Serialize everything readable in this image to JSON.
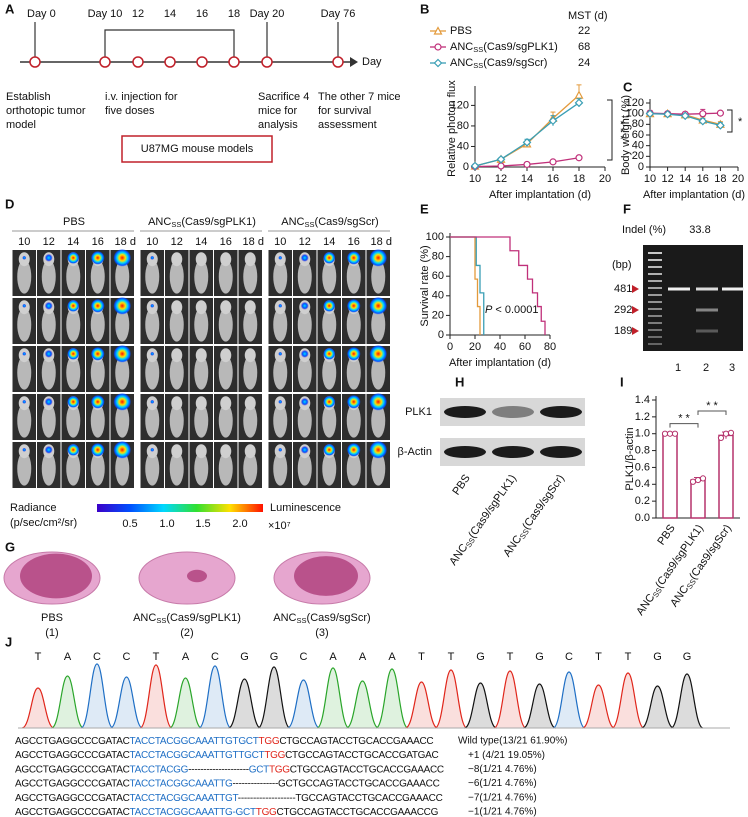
{
  "panel_labels": [
    "A",
    "B",
    "C",
    "D",
    "E",
    "F",
    "G",
    "H",
    "I",
    "J"
  ],
  "timeline": {
    "days": [
      "Day 0",
      "Day 10",
      "12",
      "14",
      "16",
      "18",
      "Day 20",
      "Day 76"
    ],
    "axis_label": "Day",
    "notes": [
      [
        "Establish",
        "orthotopic tumor",
        "model"
      ],
      [
        "i.v. injection for",
        "five doses"
      ],
      [
        "Sacrifice 4",
        "mice for",
        "analysis"
      ],
      [
        "The other 7 mice",
        "for survival",
        "assessment"
      ]
    ],
    "model_box": "U87MG mouse models"
  },
  "chart_data": [
    {
      "type": "line",
      "ylabel": "Relative photon flux",
      "xlabel": "After implantation (d)",
      "mst_label": "MST (d)",
      "significance": "* * *",
      "x": [
        10,
        12,
        14,
        16,
        18
      ],
      "series": [
        {
          "name": "PBS",
          "mst": 22,
          "color": "#e39a3b",
          "marker": "triangle",
          "values": [
            2,
            15,
            45,
            95,
            140
          ],
          "errors": [
            1,
            3,
            6,
            12,
            20
          ]
        },
        {
          "name": "ANCSS(Cas9/sgPLK1)",
          "mst": 68,
          "color": "#c0307a",
          "marker": "circle",
          "values": [
            1,
            2,
            5,
            10,
            18
          ],
          "errors": [
            0.5,
            1,
            2,
            3,
            3
          ]
        },
        {
          "name": "ANCSS(Cas9/sgScr)",
          "mst": 24,
          "color": "#3a9fb5",
          "marker": "diamond",
          "values": [
            2,
            15,
            48,
            90,
            125
          ],
          "errors": [
            1,
            3,
            6,
            10,
            8
          ]
        }
      ],
      "xlim": [
        10,
        20
      ],
      "xticks": [
        10,
        12,
        14,
        16,
        18,
        20
      ],
      "ylim": [
        0,
        150
      ],
      "yticks": [
        0,
        40,
        80,
        120
      ]
    },
    {
      "type": "line",
      "ylabel": "Body weight (%)",
      "xlabel": "After implantation (d)",
      "significance": "*",
      "x": [
        10,
        12,
        14,
        16,
        18
      ],
      "series": [
        {
          "color": "#e39a3b",
          "marker": "triangle",
          "values": [
            100,
            100,
            98,
            88,
            80
          ],
          "errors": [
            3,
            2,
            4,
            6,
            5
          ]
        },
        {
          "color": "#c0307a",
          "marker": "circle",
          "values": [
            101,
            100,
            99,
            100,
            101
          ],
          "errors": [
            5,
            3,
            4,
            8,
            4
          ]
        },
        {
          "color": "#3a9fb5",
          "marker": "diamond",
          "values": [
            100,
            99,
            96,
            86,
            78
          ],
          "errors": [
            2,
            3,
            3,
            5,
            5
          ]
        }
      ],
      "xlim": [
        10,
        20
      ],
      "xticks": [
        10,
        12,
        14,
        16,
        18,
        20
      ],
      "ylim": [
        0,
        120
      ],
      "yticks": [
        0,
        20,
        40,
        60,
        80,
        100,
        120
      ]
    },
    {
      "type": "line",
      "ylabel": "Survival rate (%)",
      "xlabel": "After implantation (d)",
      "annotation": "P < 0.0001",
      "series": [
        {
          "color": "#e39a3b",
          "x": [
            0,
            20,
            20,
            22,
            22,
            24,
            24
          ],
          "values": [
            100,
            100,
            57,
            57,
            29,
            29,
            0
          ]
        },
        {
          "color": "#3a9fb5",
          "x": [
            0,
            21,
            21,
            24,
            24,
            27,
            27
          ],
          "values": [
            100,
            100,
            71,
            71,
            43,
            43,
            0
          ]
        },
        {
          "color": "#c0307a",
          "x": [
            0,
            48,
            48,
            55,
            55,
            62,
            62,
            66,
            66,
            70,
            70,
            73,
            73,
            76,
            76
          ],
          "values": [
            100,
            100,
            86,
            86,
            71,
            71,
            57,
            57,
            43,
            43,
            29,
            29,
            14,
            14,
            0
          ]
        }
      ],
      "xlim": [
        0,
        80
      ],
      "xticks": [
        0,
        20,
        40,
        60,
        80
      ],
      "ylim": [
        0,
        100
      ],
      "yticks": [
        0,
        20,
        40,
        60,
        80,
        100
      ]
    },
    {
      "type": "bar",
      "ylabel": "PLK1/β-actin",
      "color": "#b5336c",
      "categories": [
        "PBS",
        "ANCSS(Cas9/sgPLK1)",
        "ANCSS(Cas9/sgScr)"
      ],
      "values": [
        1.0,
        0.45,
        0.98
      ],
      "errors": [
        0.01,
        0.03,
        0.04
      ],
      "points": [
        [
          1.0,
          1.0,
          1.0
        ],
        [
          0.43,
          0.45,
          0.47
        ],
        [
          0.95,
          1.0,
          1.01
        ]
      ],
      "significance": [
        "* *",
        "* *"
      ],
      "ylim": [
        0,
        1.4
      ],
      "yticks": [
        {
          "value": 0,
          "label": "0.0"
        },
        0.2,
        0.4,
        0.6,
        0.8,
        {
          "value": 1,
          "label": "1.0"
        },
        1.2,
        1.4
      ]
    }
  ],
  "imaging": {
    "groups": [
      "PBS",
      "ANCSS(Cas9/sgPLK1)",
      "ANCSS(Cas9/sgScr)"
    ],
    "day_labels": [
      "10",
      "12",
      "14",
      "16",
      "18 d"
    ],
    "colorbar": {
      "title": "Radiance",
      "unit": "(p/sec/cm²/sr)",
      "label": "Luminescence",
      "ticks": [
        "0.5",
        "1.0",
        "1.5",
        "2.0"
      ],
      "multiplier": "×10⁷"
    }
  },
  "histology": {
    "labels": [
      [
        "PBS",
        "(1)"
      ],
      [
        "ANCSS(Cas9/sgPLK1)",
        "(2)"
      ],
      [
        "ANCSS(Cas9/sgScr)",
        "(3)"
      ]
    ]
  },
  "gel": {
    "indel_label": "Indel (%)",
    "indel_value": "33.8",
    "bp_label": "(bp)",
    "markers": [
      "481",
      "292",
      "189"
    ],
    "lanes": [
      "1",
      "2",
      "3"
    ]
  },
  "western": {
    "bands": [
      "PLK1",
      "β-Actin"
    ],
    "lanes": [
      "PBS",
      "ANCSS(Cas9/sgPLK1)",
      "ANCSS(Cas9/sgScr)"
    ]
  },
  "sequencing": {
    "bases": [
      "T",
      "A",
      "C",
      "C",
      "T",
      "A",
      "C",
      "G",
      "G",
      "C",
      "A",
      "A",
      "A",
      "T",
      "T",
      "G",
      "T",
      "G",
      "C",
      "T",
      "T",
      "G",
      "G"
    ],
    "rows": [
      {
        "segments": [
          {
            "text": "AGCCTGAGGCCCGATAC",
            "color": "#111"
          },
          {
            "text": "TACCTACGGCAAATTGTGCT",
            "color": "#1f6fc5"
          },
          {
            "text": "TGG",
            "color": "#e0261b"
          },
          {
            "text": "CTGCCAGTACCTGCACCGAAACC",
            "color": "#111"
          }
        ],
        "label": "Wild type(13/21  61.90%)"
      },
      {
        "segments": [
          {
            "text": "AGCCTGAGGCCCGATAC",
            "color": "#111"
          },
          {
            "text": "TACCTACGGCAAATTGTTGCT",
            "color": "#1f6fc5"
          },
          {
            "text": "TGG",
            "color": "#e0261b"
          },
          {
            "text": "CTGCCAGTACCTGCACCGATGAC",
            "color": "#111"
          }
        ],
        "label": "+1 (4/21 19.05%)"
      },
      {
        "segments": [
          {
            "text": "AGCCTGAGGCCCGATAC",
            "color": "#111"
          },
          {
            "text": "TACCTACGG",
            "color": "#1f6fc5"
          },
          {
            "text": "--------------------",
            "color": "#111"
          },
          {
            "text": "GCT",
            "color": "#1f6fc5"
          },
          {
            "text": "TGG",
            "color": "#e0261b"
          },
          {
            "text": "CTGCCAGTACCTGCACCGAAACC",
            "color": "#111"
          }
        ],
        "label": "−8(1/21 4.76%)"
      },
      {
        "segments": [
          {
            "text": "AGCCTGAGGCCCGATAC",
            "color": "#111"
          },
          {
            "text": "TACCTACGGCAAATTG",
            "color": "#1f6fc5"
          },
          {
            "text": "---------------",
            "color": "#111"
          },
          {
            "text": "GCTGCCAGTACCTGCACCGAAACC",
            "color": "#111"
          }
        ],
        "label": "−6(1/21 4.76%)"
      },
      {
        "segments": [
          {
            "text": "AGCCTGAGGCCCGATAC",
            "color": "#111"
          },
          {
            "text": "TACCTACGGCAAATTGT",
            "color": "#1f6fc5"
          },
          {
            "text": "-------------------",
            "color": "#111"
          },
          {
            "text": "TGCCAGTACCTGCACCGAAACC",
            "color": "#111"
          }
        ],
        "label": "−7(1/21 4.76%)"
      },
      {
        "segments": [
          {
            "text": "AGCCTGAGGCCCGATAC",
            "color": "#111"
          },
          {
            "text": "TACCTACGGCAAATTG-GCT",
            "color": "#1f6fc5"
          },
          {
            "text": "TGG",
            "color": "#e0261b"
          },
          {
            "text": "CTGCCAGTACCTGCACCGAAACCG",
            "color": "#111"
          }
        ],
        "label": "−1(1/21 4.76%)"
      }
    ]
  }
}
